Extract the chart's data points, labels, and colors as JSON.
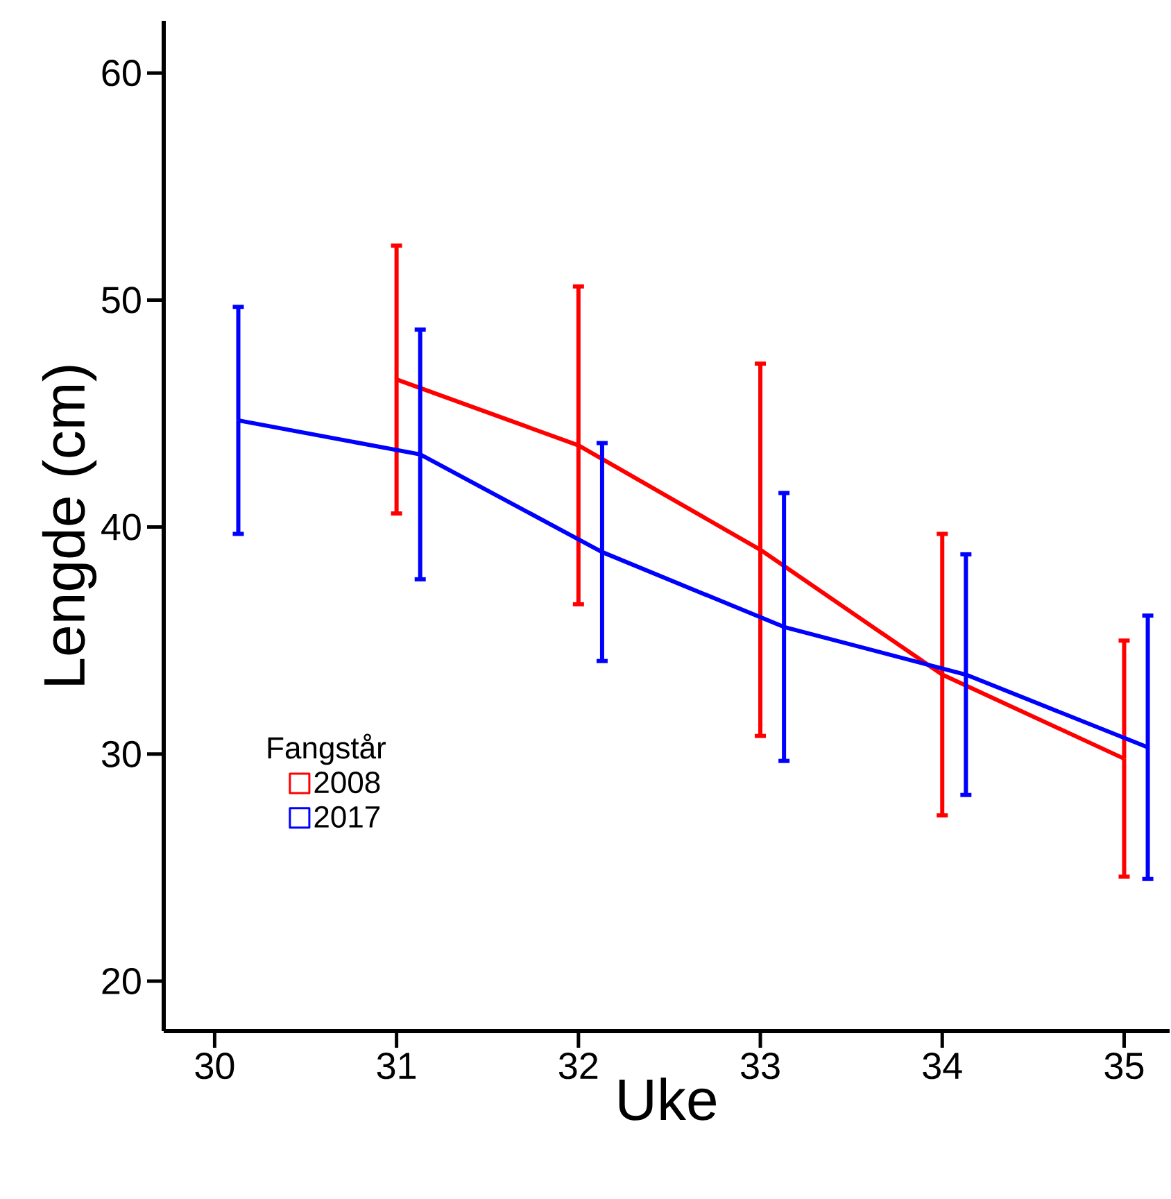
{
  "chart_data": {
    "type": "line",
    "xlabel": "Uke",
    "ylabel": "Lengde (cm)",
    "legend_title": "Fangstår",
    "xlim": [
      29.72,
      35.25
    ],
    "ylim": [
      17.8,
      62.3
    ],
    "xticks": [
      30,
      31,
      32,
      33,
      34,
      35
    ],
    "yticks": [
      20,
      30,
      40,
      50,
      60
    ],
    "grid": false,
    "legend": "bottom left",
    "marker": "none",
    "line_style": "solid",
    "series": [
      {
        "name": "2008",
        "color": "#ff0000",
        "x": [
          31,
          32,
          33,
          34,
          35
        ],
        "values": [
          46.5,
          43.6,
          39.0,
          33.5,
          29.8
        ],
        "errors": [
          5.9,
          7.0,
          8.2,
          6.2,
          5.2
        ]
      },
      {
        "name": "2017",
        "color": "#0000ff",
        "x": [
          30.13,
          31.13,
          32.13,
          33.13,
          34.13,
          35.13
        ],
        "values": [
          44.7,
          43.2,
          38.9,
          35.6,
          33.5,
          30.3
        ],
        "errors": [
          5.0,
          5.5,
          4.8,
          5.9,
          5.3,
          5.8
        ]
      }
    ]
  }
}
